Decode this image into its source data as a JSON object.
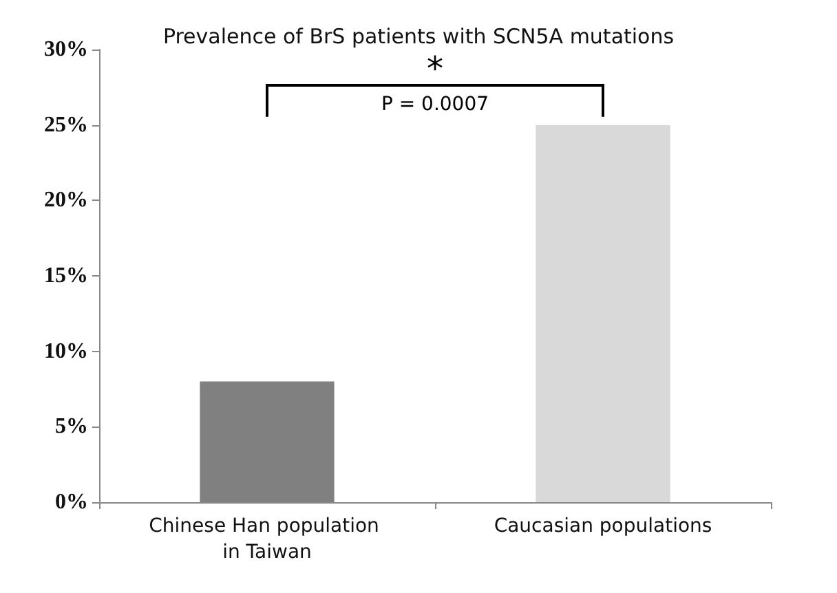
{
  "chart_data": {
    "type": "bar",
    "title": "Prevalence of BrS patients with SCN5A mutations",
    "categories": [
      "Chinese Han population in Taiwan",
      "Caucasian populations"
    ],
    "values": [
      8,
      25
    ],
    "colors": [
      "#808080",
      "#d9d9d9"
    ],
    "ylim": [
      0,
      30
    ],
    "yticks": [
      {
        "value": 0,
        "label": "0%"
      },
      {
        "value": 5,
        "label": "5%"
      },
      {
        "value": 10,
        "label": "10%"
      },
      {
        "value": 15,
        "label": "15%"
      },
      {
        "value": 20,
        "label": "20%"
      },
      {
        "value": 25,
        "label": "25%"
      },
      {
        "value": 30,
        "label": "30%"
      }
    ],
    "annotations": [
      "*",
      "P = 0.0007"
    ]
  }
}
